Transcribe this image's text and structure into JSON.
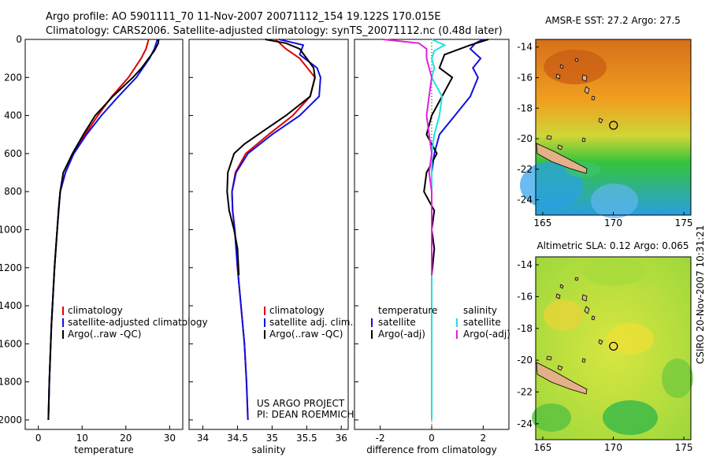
{
  "header": {
    "line1": "Argo profile: AO 5901111_70 11-Nov-2007 20071112_154 19.122S 170.015E",
    "line2": "Climatology: CARS2006. Satellite-adjusted climatology: synTS_20071112.nc (0.48d later)"
  },
  "side_label": "CSIRO 20-Nov-2007 10:31:21",
  "project": {
    "line1": "US ARGO PROJECT",
    "line2": "PI: DEAN ROEMMICH"
  },
  "colors": {
    "red": "#e00000",
    "blue": "#1010e0",
    "black": "#000000",
    "cyan": "#20e0e0",
    "magenta": "#e020e0"
  },
  "chart_data": [
    {
      "id": "temperature",
      "type": "line",
      "xlabel": "temperature",
      "xlim": [
        -3,
        33
      ],
      "ylim": [
        0,
        2050
      ],
      "xticks": [
        0,
        10,
        20,
        30
      ],
      "yticks": [
        0,
        200,
        400,
        600,
        800,
        1000,
        1200,
        1400,
        1600,
        1800,
        2000
      ],
      "legend": [
        "climatology",
        "satellite-adjusted climatology",
        "Argo(..raw -QC)"
      ],
      "series": [
        {
          "name": "climatology",
          "color": "red",
          "depth": [
            0,
            50,
            100,
            200,
            300,
            400,
            500,
            600,
            700,
            800,
            1000,
            1200,
            1500,
            1800,
            2000
          ],
          "values": [
            25.2,
            24.6,
            23.5,
            20.6,
            16.8,
            13.6,
            10.7,
            8.0,
            6.2,
            5.0,
            4.3,
            3.7,
            3.0,
            2.5,
            2.3
          ]
        },
        {
          "name": "satellite-adjusted climatology",
          "color": "blue",
          "depth": [
            0,
            50,
            100,
            200,
            300,
            400,
            500,
            600,
            700,
            800,
            1000,
            1200,
            1500,
            1800,
            2000
          ],
          "values": [
            27.2,
            26.5,
            25.4,
            22.4,
            18.3,
            14.4,
            11.0,
            8.1,
            6.2,
            5.0,
            4.3,
            3.7,
            3.0,
            2.5,
            2.3
          ]
        },
        {
          "name": "Argo(..raw -QC)",
          "color": "black",
          "depth": [
            0,
            20,
            60,
            100,
            150,
            200,
            300,
            400,
            500,
            600,
            700,
            800,
            900,
            1000,
            1200,
            1500,
            1800,
            2000
          ],
          "values": [
            27.5,
            27.4,
            26.5,
            25.2,
            23.6,
            21.6,
            17.0,
            13.0,
            10.3,
            7.8,
            5.7,
            5.0,
            4.6,
            4.3,
            3.7,
            3.0,
            2.5,
            2.3
          ]
        }
      ]
    },
    {
      "id": "salinity",
      "type": "line",
      "xlabel": "salinity",
      "xlim": [
        33.8,
        36.1
      ],
      "ylim": [
        0,
        2050
      ],
      "xticks": [
        34,
        34.5,
        35,
        35.5,
        36
      ],
      "yticks": [
        0,
        200,
        400,
        600,
        800,
        1000,
        1200,
        1400,
        1600,
        1800,
        2000
      ],
      "legend": [
        "climatology",
        "satellite adj. clim.",
        "Argo(..raw -QC)"
      ],
      "series": [
        {
          "name": "climatology",
          "color": "red",
          "depth": [
            0,
            50,
            100,
            200,
            300,
            400,
            500,
            600,
            700,
            800,
            900,
            1000,
            1200,
            1400,
            1600,
            1800,
            2000
          ],
          "values": [
            35.05,
            35.2,
            35.4,
            35.62,
            35.55,
            35.3,
            34.95,
            34.62,
            34.47,
            34.42,
            34.43,
            34.46,
            34.5,
            34.55,
            34.6,
            34.63,
            34.65
          ]
        },
        {
          "name": "satellite adj. clim.",
          "color": "blue",
          "depth": [
            0,
            30,
            80,
            150,
            200,
            300,
            400,
            500,
            600,
            700,
            800,
            900,
            1000,
            1200,
            1400,
            1600,
            1800,
            2000
          ],
          "values": [
            35.1,
            35.45,
            35.4,
            35.65,
            35.7,
            35.68,
            35.4,
            35.0,
            34.65,
            34.48,
            34.42,
            34.43,
            34.46,
            34.5,
            34.55,
            34.6,
            34.63,
            34.65
          ]
        },
        {
          "name": "Argo(..raw -QC)",
          "color": "black",
          "depth": [
            0,
            20,
            50,
            100,
            150,
            200,
            300,
            400,
            500,
            550,
            600,
            700,
            800,
            900,
            1000,
            1100,
            1240
          ],
          "values": [
            34.9,
            35.2,
            35.4,
            35.5,
            35.6,
            35.62,
            35.55,
            35.2,
            34.8,
            34.6,
            34.45,
            34.36,
            34.35,
            34.38,
            34.45,
            34.5,
            34.52
          ]
        }
      ]
    },
    {
      "id": "difference",
      "type": "line",
      "xlabel": "difference from climatology",
      "xlim": [
        -3,
        3
      ],
      "ylim": [
        0,
        2050
      ],
      "xticks": [
        -2,
        0,
        2
      ],
      "yticks": [
        0,
        200,
        400,
        600,
        800,
        1000,
        1200,
        1400,
        1600,
        1800,
        2000
      ],
      "legend_headers": [
        "temperature",
        "salinity"
      ],
      "legend": [
        "satellite",
        "Argo(-adj)",
        "satellite",
        "Argo(-adj)"
      ],
      "series": [
        {
          "name": "temperature satellite",
          "color": "blue",
          "depth": [
            0,
            20,
            50,
            100,
            150,
            200,
            300,
            400,
            500,
            600,
            700,
            800,
            1000,
            1500,
            2000
          ],
          "values": [
            2.0,
            1.7,
            1.5,
            1.9,
            1.6,
            1.8,
            1.5,
            0.9,
            0.3,
            0.1,
            0.0,
            0.0,
            0.0,
            0.0,
            0.0
          ]
        },
        {
          "name": "temperature Argo(-adj)",
          "color": "black",
          "depth": [
            0,
            30,
            80,
            150,
            200,
            300,
            400,
            500,
            600,
            700,
            800,
            900,
            1000,
            1100,
            1240
          ],
          "values": [
            2.2,
            1.5,
            0.5,
            0.3,
            0.8,
            0.4,
            0.0,
            -0.2,
            0.2,
            -0.2,
            -0.3,
            0.1,
            0.0,
            0.1,
            0.0
          ]
        },
        {
          "name": "salinity satellite",
          "color": "cyan",
          "depth": [
            0,
            30,
            60,
            100,
            150,
            200,
            300,
            400,
            500,
            600,
            800,
            1000,
            1500,
            2000
          ],
          "values": [
            0.0,
            0.5,
            0.1,
            0.0,
            0.1,
            0.0,
            0.4,
            0.3,
            0.1,
            0.0,
            0.0,
            0.0,
            0.0,
            0.0
          ]
        },
        {
          "name": "salinity Argo(-adj)",
          "color": "magenta",
          "depth": [
            0,
            20,
            50,
            100,
            200,
            300,
            400,
            500,
            600,
            700,
            800,
            1000,
            1240
          ],
          "values": [
            -1.9,
            -0.5,
            -0.2,
            -0.2,
            0.0,
            -0.1,
            -0.2,
            -0.1,
            0.0,
            -0.1,
            0.0,
            0.0,
            0.0
          ]
        }
      ]
    },
    {
      "id": "sst_map",
      "type": "heatmap",
      "title": "AMSR-E SST: 27.2 Argo: 27.5",
      "xlim": [
        164.5,
        175.5
      ],
      "ylim": [
        -25,
        -13.5
      ],
      "xticks": [
        165,
        170,
        175
      ],
      "yticks": [
        -14,
        -16,
        -18,
        -20,
        -22,
        -24
      ],
      "profile_location": {
        "lon": 170.015,
        "lat": -19.122
      }
    },
    {
      "id": "sla_map",
      "type": "heatmap",
      "title": "Altimetric SLA: 0.12 Argo: 0.065",
      "xlim": [
        164.5,
        175.5
      ],
      "ylim": [
        -25,
        -13.5
      ],
      "xticks": [
        165,
        170,
        175
      ],
      "yticks": [
        -14,
        -16,
        -18,
        -20,
        -22,
        -24
      ],
      "profile_location": {
        "lon": 170.015,
        "lat": -19.122
      }
    }
  ]
}
